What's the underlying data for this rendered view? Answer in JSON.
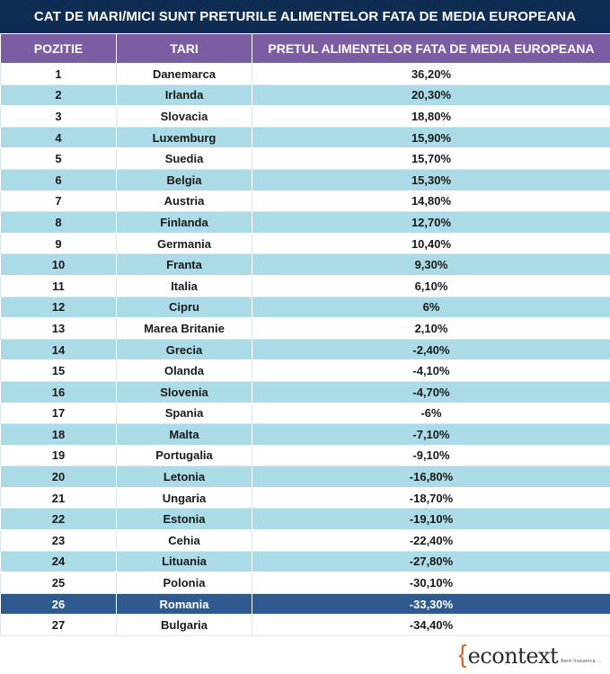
{
  "title": "CAT DE MARI/MICI SUNT PRETURILE ALIMENTELOR FATA DE MEDIA EUROPEANA",
  "columns": [
    "POZITIE",
    "TARI",
    "PRETUL ALIMENTELOR FATA DE MEDIA EUROPEANA"
  ],
  "rows": [
    [
      "1",
      "Danemarca",
      "36,20%"
    ],
    [
      "2",
      "Irlanda",
      "20,30%"
    ],
    [
      "3",
      "Slovacia",
      "18,80%"
    ],
    [
      "4",
      "Luxemburg",
      "15,90%"
    ],
    [
      "5",
      "Suedia",
      "15,70%"
    ],
    [
      "6",
      "Belgia",
      "15,30%"
    ],
    [
      "7",
      "Austria",
      "14,80%"
    ],
    [
      "8",
      "Finlanda",
      "12,70%"
    ],
    [
      "9",
      "Germania",
      "10,40%"
    ],
    [
      "10",
      "Franta",
      "9,30%"
    ],
    [
      "11",
      "Italia",
      "6,10%"
    ],
    [
      "12",
      "Cipru",
      "6%"
    ],
    [
      "13",
      "Marea Britanie",
      "2,10%"
    ],
    [
      "14",
      "Grecia",
      "-2,40%"
    ],
    [
      "15",
      "Olanda",
      "-4,10%"
    ],
    [
      "16",
      "Slovenia",
      "-4,70%"
    ],
    [
      "17",
      "Spania",
      "-6%"
    ],
    [
      "18",
      "Malta",
      "-7,10%"
    ],
    [
      "19",
      "Portugalia",
      "-9,10%"
    ],
    [
      "20",
      "Letonia",
      "-16,80%"
    ],
    [
      "21",
      "Ungaria",
      "-18,70%"
    ],
    [
      "22",
      "Estonia",
      "-19,10%"
    ],
    [
      "23",
      "Cehia",
      "-22,40%"
    ],
    [
      "24",
      "Lituania",
      "-27,80%"
    ],
    [
      "25",
      "Polonia",
      "-30,10%"
    ],
    [
      "26",
      "Romania",
      "-33,30%"
    ],
    [
      "27",
      "Bulgaria",
      "-34,40%"
    ]
  ],
  "highlight_row": "26",
  "colors": {
    "banner": "#0f2d52",
    "header": "#7b5da3",
    "stripe": "#abdbe6",
    "highlight": "#2e5a8f",
    "logo_brace": "#d2691e"
  },
  "logo": {
    "open_brace": "{",
    "text": "econtext",
    "close_brace": "}",
    "tagline": "Banii înseamnă ..."
  }
}
